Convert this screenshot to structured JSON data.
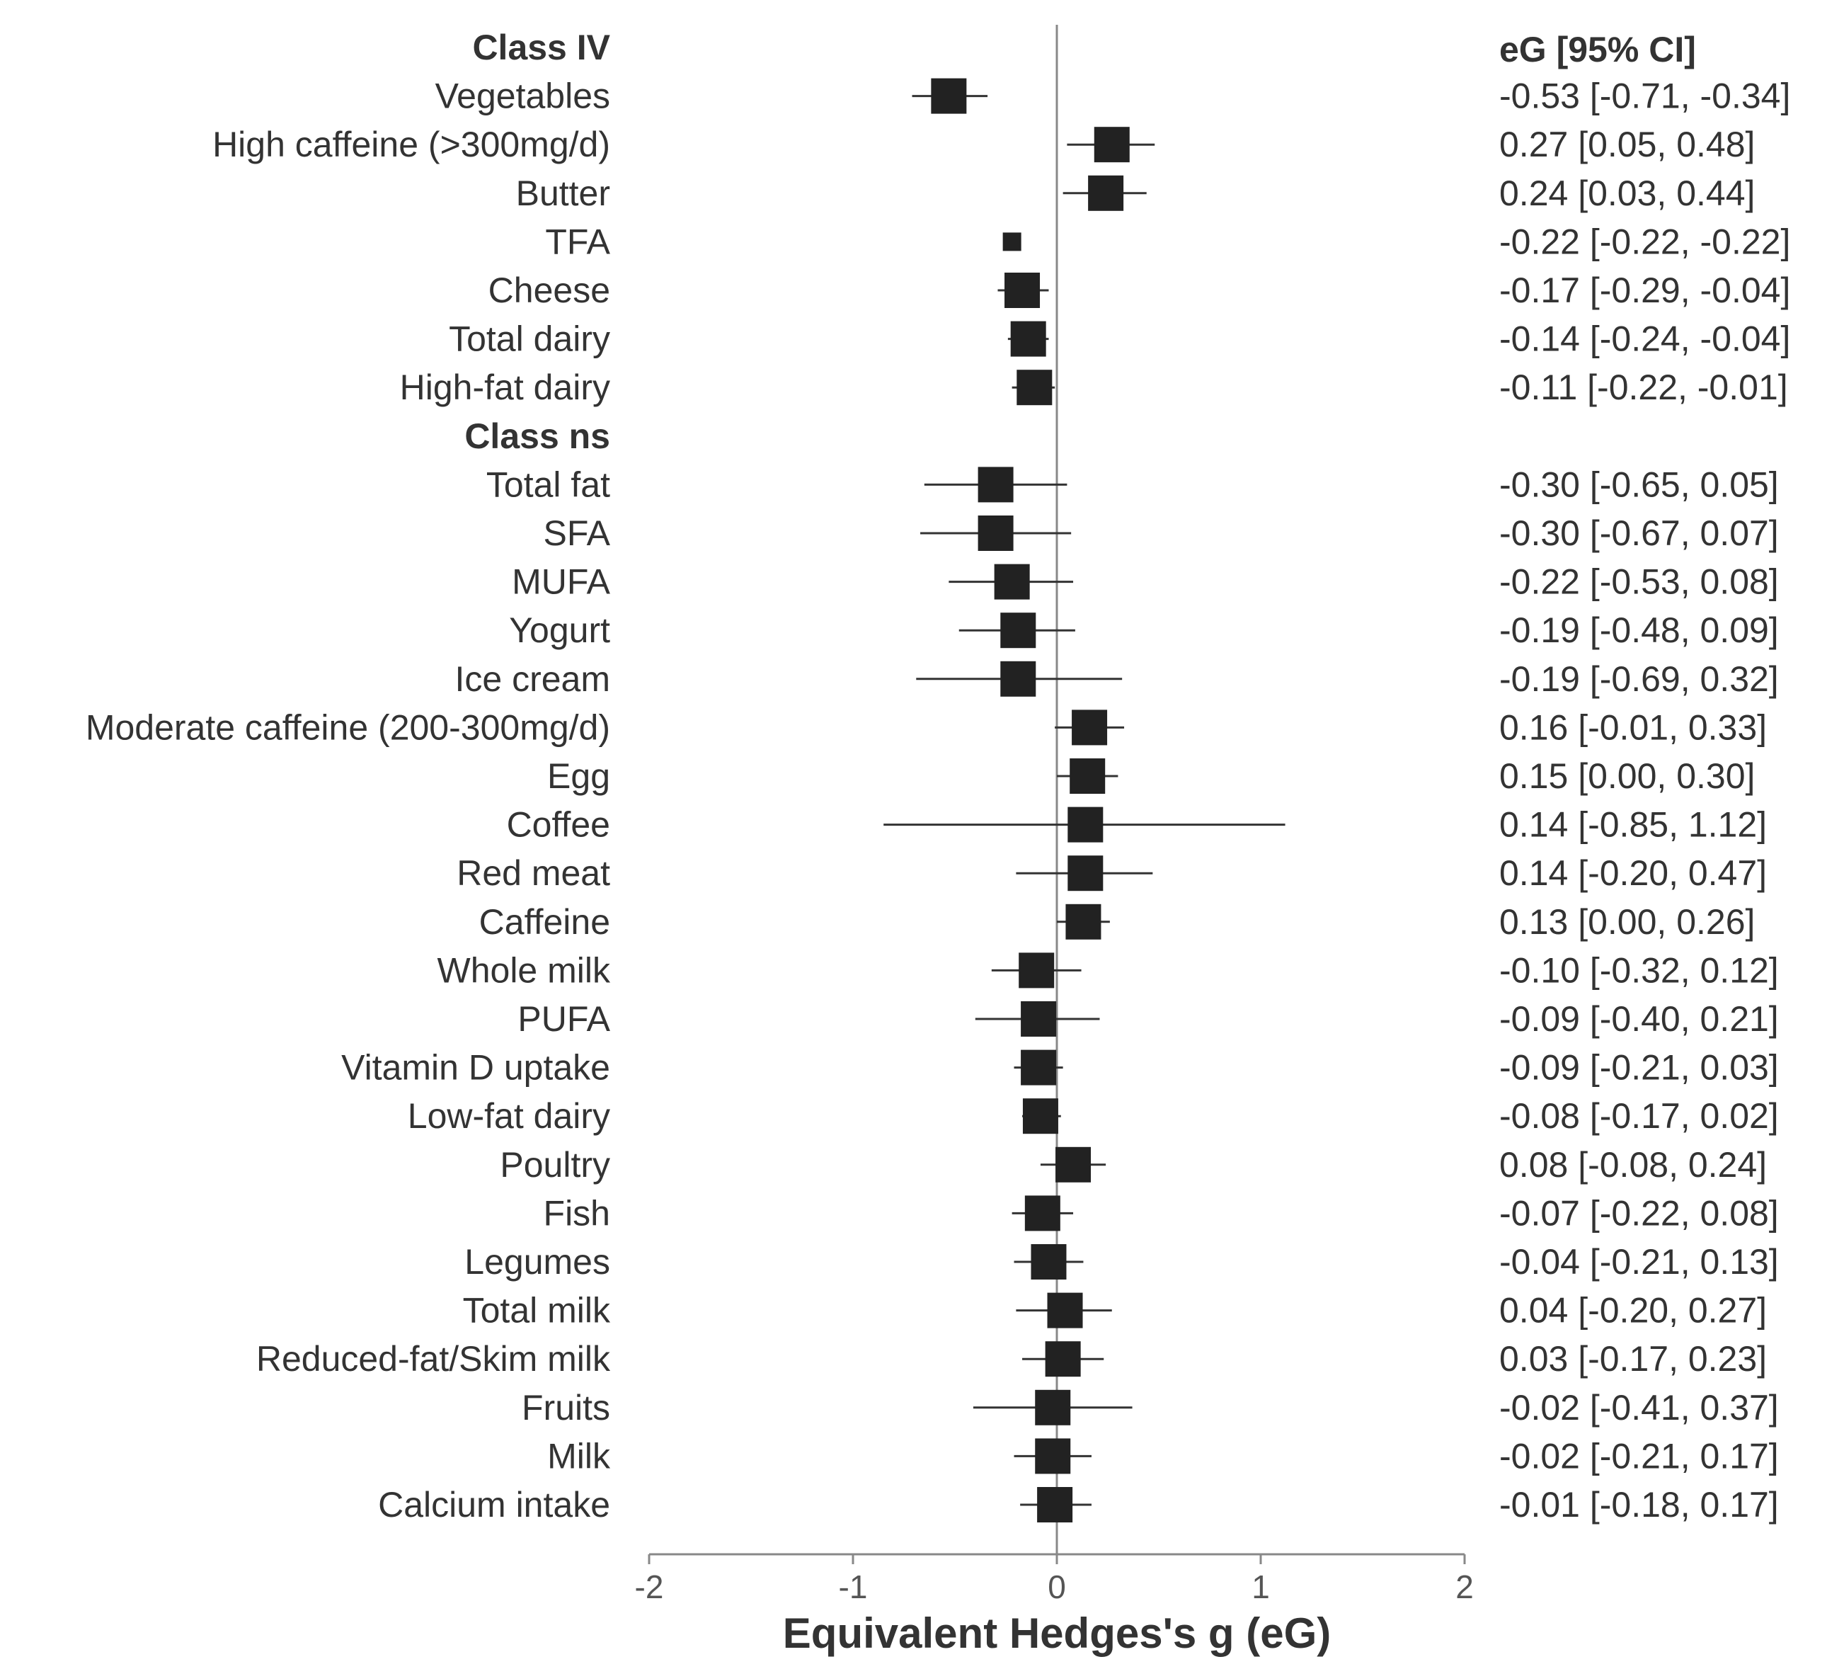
{
  "chart_data": {
    "type": "forest",
    "title": "",
    "xlabel": "Equivalent Hedges's g (eG)",
    "ylabel": "",
    "estimate_column_header": "eG [95% CI]",
    "xlim": [
      -2,
      2
    ],
    "xticks": [
      -2,
      -1,
      0,
      1,
      2
    ],
    "reference_line": 0,
    "grid": false,
    "groups": [
      {
        "label": "Class IV",
        "rows": [
          {
            "label": "Vegetables",
            "estimate": -0.53,
            "lower": -0.71,
            "upper": -0.34,
            "text": "-0.53 [-0.71, -0.34]"
          },
          {
            "label": "High caffeine (>300mg/d)",
            "estimate": 0.27,
            "lower": 0.05,
            "upper": 0.48,
            "text": "0.27 [0.05, 0.48]"
          },
          {
            "label": "Butter",
            "estimate": 0.24,
            "lower": 0.03,
            "upper": 0.44,
            "text": "0.24 [0.03, 0.44]"
          },
          {
            "label": "TFA",
            "estimate": -0.22,
            "lower": -0.22,
            "upper": -0.22,
            "text": "-0.22 [-0.22, -0.22]"
          },
          {
            "label": "Cheese",
            "estimate": -0.17,
            "lower": -0.29,
            "upper": -0.04,
            "text": "-0.17 [-0.29, -0.04]"
          },
          {
            "label": "Total dairy",
            "estimate": -0.14,
            "lower": -0.24,
            "upper": -0.04,
            "text": "-0.14 [-0.24, -0.04]"
          },
          {
            "label": "High-fat dairy",
            "estimate": -0.11,
            "lower": -0.22,
            "upper": -0.01,
            "text": "-0.11 [-0.22, -0.01]"
          }
        ]
      },
      {
        "label": "Class ns",
        "rows": [
          {
            "label": "Total fat",
            "estimate": -0.3,
            "lower": -0.65,
            "upper": 0.05,
            "text": "-0.30 [-0.65, 0.05]"
          },
          {
            "label": "SFA",
            "estimate": -0.3,
            "lower": -0.67,
            "upper": 0.07,
            "text": "-0.30 [-0.67, 0.07]"
          },
          {
            "label": "MUFA",
            "estimate": -0.22,
            "lower": -0.53,
            "upper": 0.08,
            "text": "-0.22 [-0.53, 0.08]"
          },
          {
            "label": "Yogurt",
            "estimate": -0.19,
            "lower": -0.48,
            "upper": 0.09,
            "text": "-0.19 [-0.48, 0.09]"
          },
          {
            "label": "Ice cream",
            "estimate": -0.19,
            "lower": -0.69,
            "upper": 0.32,
            "text": "-0.19 [-0.69, 0.32]"
          },
          {
            "label": "Moderate caffeine (200-300mg/d)",
            "estimate": 0.16,
            "lower": -0.01,
            "upper": 0.33,
            "text": "0.16 [-0.01, 0.33]"
          },
          {
            "label": "Egg",
            "estimate": 0.15,
            "lower": 0.0,
            "upper": 0.3,
            "text": "0.15 [0.00, 0.30]"
          },
          {
            "label": "Coffee",
            "estimate": 0.14,
            "lower": -0.85,
            "upper": 1.12,
            "text": "0.14 [-0.85, 1.12]"
          },
          {
            "label": "Red meat",
            "estimate": 0.14,
            "lower": -0.2,
            "upper": 0.47,
            "text": "0.14 [-0.20, 0.47]"
          },
          {
            "label": "Caffeine",
            "estimate": 0.13,
            "lower": 0.0,
            "upper": 0.26,
            "text": "0.13 [0.00, 0.26]"
          },
          {
            "label": "Whole milk",
            "estimate": -0.1,
            "lower": -0.32,
            "upper": 0.12,
            "text": "-0.10 [-0.32, 0.12]"
          },
          {
            "label": "PUFA",
            "estimate": -0.09,
            "lower": -0.4,
            "upper": 0.21,
            "text": "-0.09 [-0.40, 0.21]"
          },
          {
            "label": "Vitamin D uptake",
            "estimate": -0.09,
            "lower": -0.21,
            "upper": 0.03,
            "text": "-0.09 [-0.21, 0.03]"
          },
          {
            "label": "Low-fat dairy",
            "estimate": -0.08,
            "lower": -0.17,
            "upper": 0.02,
            "text": "-0.08 [-0.17, 0.02]"
          },
          {
            "label": "Poultry",
            "estimate": 0.08,
            "lower": -0.08,
            "upper": 0.24,
            "text": "0.08 [-0.08, 0.24]"
          },
          {
            "label": "Fish",
            "estimate": -0.07,
            "lower": -0.22,
            "upper": 0.08,
            "text": "-0.07 [-0.22, 0.08]"
          },
          {
            "label": "Legumes",
            "estimate": -0.04,
            "lower": -0.21,
            "upper": 0.13,
            "text": "-0.04 [-0.21, 0.13]"
          },
          {
            "label": "Total milk",
            "estimate": 0.04,
            "lower": -0.2,
            "upper": 0.27,
            "text": "0.04 [-0.20, 0.27]"
          },
          {
            "label": "Reduced-fat/Skim milk",
            "estimate": 0.03,
            "lower": -0.17,
            "upper": 0.23,
            "text": "0.03 [-0.17, 0.23]"
          },
          {
            "label": "Fruits",
            "estimate": -0.02,
            "lower": -0.41,
            "upper": 0.37,
            "text": "-0.02 [-0.41, 0.37]"
          },
          {
            "label": "Milk",
            "estimate": -0.02,
            "lower": -0.21,
            "upper": 0.17,
            "text": "-0.02 [-0.21, 0.17]"
          },
          {
            "label": "Calcium intake",
            "estimate": -0.01,
            "lower": -0.18,
            "upper": 0.17,
            "text": "-0.01 [-0.18, 0.17]"
          }
        ]
      }
    ]
  }
}
